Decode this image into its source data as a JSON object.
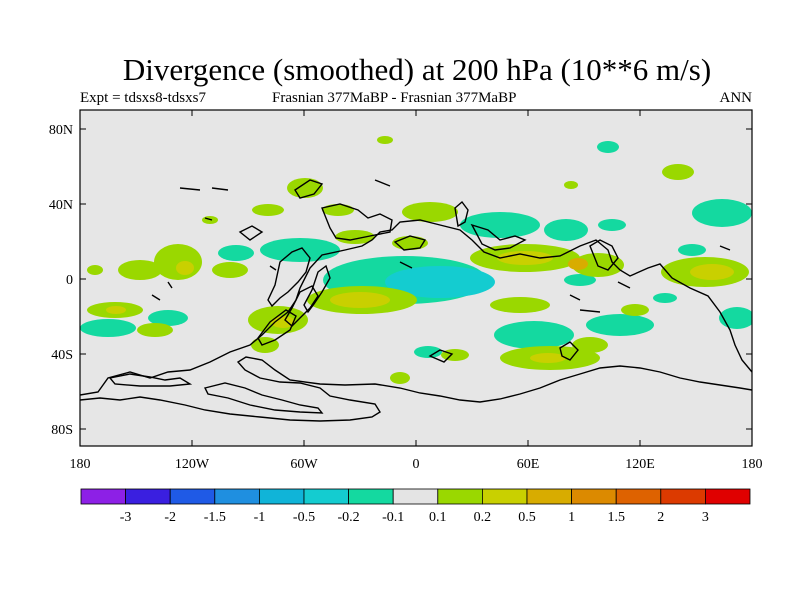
{
  "title": "Divergence (smoothed) at 200 hPa (10**6 m/s)",
  "subtitle": {
    "left": "Expt = tdsxs8-tdsxs7",
    "center": "Frasnian 377MaBP - Frasnian 377MaBP",
    "right": "ANN"
  },
  "axes": {
    "y_labels": [
      "80N",
      "40N",
      "0",
      "40S",
      "80S"
    ],
    "x_labels": [
      "180",
      "120W",
      "60W",
      "0",
      "60E",
      "120E",
      "180"
    ]
  },
  "colorbar": {
    "colors": [
      "#8d20e6",
      "#3a1fe0",
      "#1f5ae6",
      "#1f8fe0",
      "#10b4d8",
      "#14ccd0",
      "#14d9a0",
      "#e4e4e4",
      "#9ad800",
      "#c9d000",
      "#d8ac00",
      "#dc8a00",
      "#de6200",
      "#dc3a00",
      "#e00000"
    ],
    "labels": [
      "-3",
      "-2",
      "-1.5",
      "-1",
      "-0.5",
      "-0.2",
      "-0.1",
      "0.1",
      "0.2",
      "0.5",
      "1",
      "1.5",
      "2",
      "3"
    ]
  },
  "palette": {
    "background": "#e6e6e6",
    "teal": "#14d9a0",
    "cyan": "#14ccd0",
    "green": "#9ad800",
    "yellow": "#c9d000",
    "orange": "#d8ac00"
  }
}
